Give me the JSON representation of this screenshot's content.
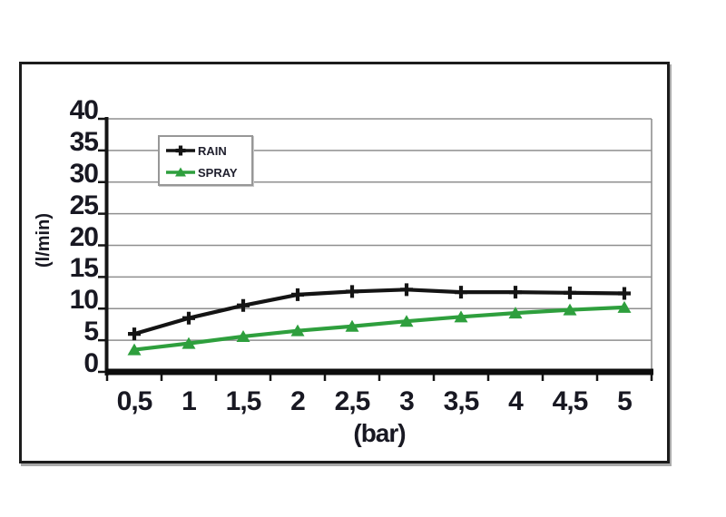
{
  "window": {
    "background": "#ffffff"
  },
  "chart_data": {
    "type": "line",
    "title": "",
    "xlabel": "(bar)",
    "ylabel": "(l/min)",
    "x": [
      0.5,
      1,
      1.5,
      2,
      2.5,
      3,
      3.5,
      4,
      4.5,
      5
    ],
    "x_tick_labels": [
      "0,5",
      "1",
      "1,5",
      "2",
      "2,5",
      "3",
      "3,5",
      "4",
      "4,5",
      "5"
    ],
    "y_ticks": [
      40,
      35,
      30,
      25,
      20,
      15,
      10,
      5,
      0
    ],
    "ylim": [
      0,
      40
    ],
    "grid": true,
    "legend_position": "upper-left-inside",
    "series": [
      {
        "name": "RAIN",
        "color": "#141414",
        "marker": "plus",
        "values": [
          6,
          8.5,
          10.5,
          12.2,
          12.7,
          13,
          12.6,
          12.6,
          12.5,
          12.4
        ]
      },
      {
        "name": "SPRAY",
        "color": "#2e9f3d",
        "marker": "triangle-up",
        "values": [
          3.5,
          4.5,
          5.6,
          6.5,
          7.2,
          8,
          8.7,
          9.3,
          9.8,
          10.2
        ]
      }
    ],
    "colors": {
      "gridline": "#8f8f8f",
      "axis": "#141414",
      "text": "#181822"
    }
  }
}
